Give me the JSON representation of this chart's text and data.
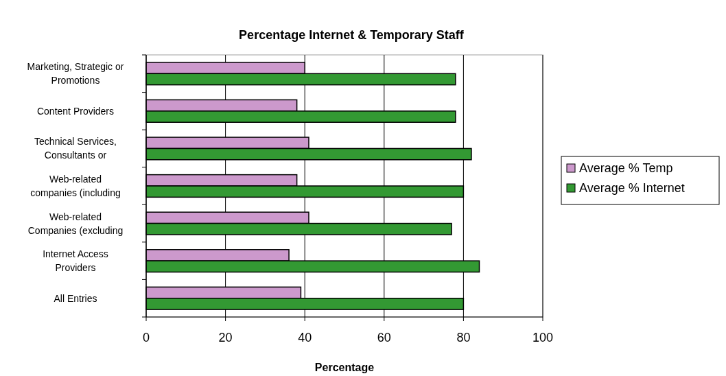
{
  "chart_data": {
    "type": "bar",
    "orientation": "horizontal",
    "title": "Percentage Internet & Temporary Staff",
    "xlabel": "Percentage",
    "categories": [
      "Marketing, Strategic or\nPromotions",
      "Content Providers",
      "Technical Services,\nConsultants or",
      "Web-related\ncompanies (including",
      "Web-related\nCompanies (excluding",
      "Internet Access\nProviders",
      "All Entries"
    ],
    "series": [
      {
        "name": "Average % Temp",
        "color": "#cc99cc",
        "values": [
          40,
          38,
          41,
          38,
          41,
          36,
          39
        ]
      },
      {
        "name": "Average % Internet",
        "color": "#339933",
        "values": [
          78,
          78,
          82,
          80,
          77,
          84,
          80
        ]
      }
    ],
    "xlim": [
      0,
      100
    ],
    "xticks": [
      0,
      20,
      40,
      60,
      80,
      100
    ],
    "grid": "x",
    "legend": "right"
  }
}
